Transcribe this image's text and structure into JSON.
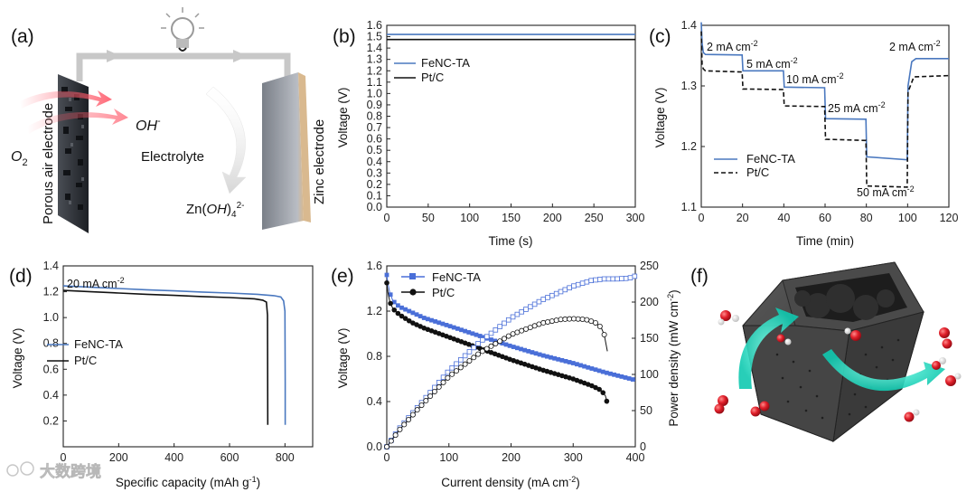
{
  "colors": {
    "fenc": "#4a78bf",
    "ptc": "#111111",
    "marker_fenc": "#4a6fd8",
    "cyan": "#19e0c8",
    "cage": "#3e3e3e"
  },
  "labels": [
    "(a)",
    "(b)",
    "(c)",
    "(d)",
    "(e)",
    "(f)"
  ],
  "legend": {
    "fenc": "FeNC-TA",
    "ptc": "Pt/C"
  },
  "schematic": {
    "oh": "OH",
    "oh_sup": "-",
    "o2": "O",
    "o2_sub": "2",
    "electrolyte": "Electrolyte",
    "air_electrode": "Porous air electrode",
    "zinc_electrode": "Zinc  electrode",
    "zn": "Zn(",
    "zn_oh": "OH",
    "zn_close": ")",
    "zn_sub": "4",
    "zn_sup": "2-"
  },
  "watermark": "大数跨境",
  "chart_data": [
    {
      "id": "b",
      "type": "line",
      "xlabel": "Time (s)",
      "ylabel": "Voltage (V)",
      "xlim": [
        0,
        300
      ],
      "ylim": [
        0,
        1.6
      ],
      "xticks": [
        "0",
        "50",
        "100",
        "150",
        "200",
        "250",
        "300"
      ],
      "yticks": [
        "0.0",
        "0.1",
        "0.2",
        "0.3",
        "0.4",
        "0.5",
        "0.6",
        "0.7",
        "0.8",
        "0.9",
        "1.0",
        "1.1",
        "1.2",
        "1.3",
        "1.4",
        "1.5",
        "1.6"
      ],
      "series": [
        {
          "name": "FeNC-TA",
          "x": [
            0,
            300
          ],
          "values": [
            1.52,
            1.52
          ]
        },
        {
          "name": "Pt/C",
          "x": [
            0,
            300
          ],
          "values": [
            1.475,
            1.475
          ]
        }
      ]
    },
    {
      "id": "c",
      "type": "line",
      "xlabel": "Time (min)",
      "ylabel": "Voltage (V)",
      "xlim": [
        0,
        120
      ],
      "ylim": [
        1.1,
        1.4
      ],
      "xticks": [
        "0",
        "20",
        "40",
        "60",
        "80",
        "100",
        "120"
      ],
      "yticks": [
        "1.1",
        "1.2",
        "1.3",
        "1.4"
      ],
      "annotations": [
        "2 mA cm",
        "5 mA cm",
        "10 mA cm",
        "25 mA cm",
        "50 mA cm",
        "2 mA cm"
      ],
      "annotation_sup": "-2",
      "series": [
        {
          "name": "FeNC-TA",
          "style": "solid",
          "x": [
            0,
            0.4,
            1,
            2,
            19.8,
            20.2,
            39.8,
            40.2,
            59.8,
            60.2,
            79.8,
            80.2,
            99.8,
            100.2,
            102,
            104,
            120
          ],
          "values": [
            1.405,
            1.37,
            1.355,
            1.352,
            1.351,
            1.325,
            1.325,
            1.298,
            1.297,
            1.246,
            1.245,
            1.183,
            1.178,
            1.3,
            1.34,
            1.345,
            1.345
          ]
        },
        {
          "name": "Pt/C",
          "style": "dashed",
          "x": [
            0,
            0.4,
            1,
            2,
            19.8,
            20.2,
            39.8,
            40.2,
            59.8,
            60.2,
            79.8,
            80.2,
            99.8,
            100.2,
            103,
            120
          ],
          "values": [
            1.39,
            1.335,
            1.328,
            1.325,
            1.323,
            1.295,
            1.294,
            1.267,
            1.266,
            1.212,
            1.21,
            1.135,
            1.133,
            1.29,
            1.315,
            1.317
          ]
        }
      ]
    },
    {
      "id": "d",
      "type": "line",
      "xlabel": "Specific capacity (mAh g",
      "xlabel_sup": "-1",
      "xlabel_end": ")",
      "ylabel": "Voltage (V)",
      "xlim": [
        0,
        900
      ],
      "ylim": [
        0,
        1.4
      ],
      "xticks": [
        "0",
        "200",
        "400",
        "600",
        "800"
      ],
      "yticks": [
        "0.2",
        "0.4",
        "0.6",
        "0.8",
        "1.0",
        "1.2",
        "1.4"
      ],
      "annotation": "20 mA cm",
      "annotation_sup": "-2",
      "series": [
        {
          "name": "FeNC-TA",
          "x": [
            0,
            100,
            200,
            300,
            400,
            500,
            600,
            700,
            760,
            785,
            795,
            800,
            801,
            801
          ],
          "values": [
            1.245,
            1.235,
            1.225,
            1.215,
            1.207,
            1.198,
            1.19,
            1.18,
            1.17,
            1.16,
            1.13,
            1.05,
            0.5,
            0.17
          ]
        },
        {
          "name": "Pt/C",
          "x": [
            0,
            100,
            200,
            300,
            400,
            500,
            600,
            690,
            720,
            733,
            737,
            738
          ],
          "values": [
            1.21,
            1.2,
            1.19,
            1.18,
            1.172,
            1.163,
            1.155,
            1.145,
            1.135,
            1.12,
            1.02,
            0.17
          ]
        }
      ]
    },
    {
      "id": "e",
      "type": "line",
      "xlabel": "Current density (mA cm",
      "xlabel_sup": "-2",
      "xlabel_end": ")",
      "ylabel": "Voltage (V)",
      "ylabel2": "Power density (mW cm",
      "ylabel2_sup": "-2",
      "ylabel2_end": ")",
      "xlim": [
        0,
        400
      ],
      "ylim": [
        0,
        1.6
      ],
      "y2lim": [
        0,
        250
      ],
      "xticks": [
        "0",
        "100",
        "200",
        "300",
        "400"
      ],
      "yticks": [
        "0.0",
        "0.4",
        "0.8",
        "1.2",
        "1.6"
      ],
      "y2ticks": [
        "0",
        "50",
        "100",
        "150",
        "200",
        "250"
      ],
      "series": [
        {
          "name": "FeNC-TA",
          "axis": "left",
          "marker": "square-filled",
          "x": [
            0,
            2,
            5,
            10,
            20,
            40,
            60,
            100,
            150,
            200,
            250,
            300,
            350,
            400
          ],
          "values": [
            1.52,
            1.44,
            1.36,
            1.29,
            1.24,
            1.19,
            1.14,
            1.07,
            0.98,
            0.89,
            0.81,
            0.74,
            0.66,
            0.59
          ]
        },
        {
          "name": "Pt/C",
          "axis": "left",
          "marker": "circle-filled",
          "x": [
            0,
            2,
            5,
            10,
            20,
            40,
            60,
            100,
            150,
            200,
            250,
            300,
            330,
            345,
            352,
            355
          ],
          "values": [
            1.45,
            1.36,
            1.28,
            1.22,
            1.17,
            1.1,
            1.05,
            0.97,
            0.87,
            0.77,
            0.68,
            0.6,
            0.54,
            0.5,
            0.45,
            0.38
          ]
        },
        {
          "name": "FeNC-TA power",
          "axis": "right",
          "marker": "square-open",
          "x": [
            0,
            20,
            50,
            100,
            150,
            200,
            250,
            300,
            330,
            350,
            370,
            390,
            400
          ],
          "values": [
            0,
            25,
            55,
            105,
            145,
            178,
            203,
            222,
            230,
            232,
            232,
            233,
            236
          ]
        },
        {
          "name": "Pt/C power",
          "axis": "right",
          "marker": "circle-open",
          "x": [
            0,
            20,
            50,
            100,
            150,
            200,
            250,
            280,
            300,
            320,
            335,
            345,
            350,
            355
          ],
          "values": [
            0,
            23,
            52,
            97,
            130,
            155,
            171,
            176,
            177,
            176,
            172,
            165,
            155,
            132
          ]
        }
      ]
    }
  ]
}
